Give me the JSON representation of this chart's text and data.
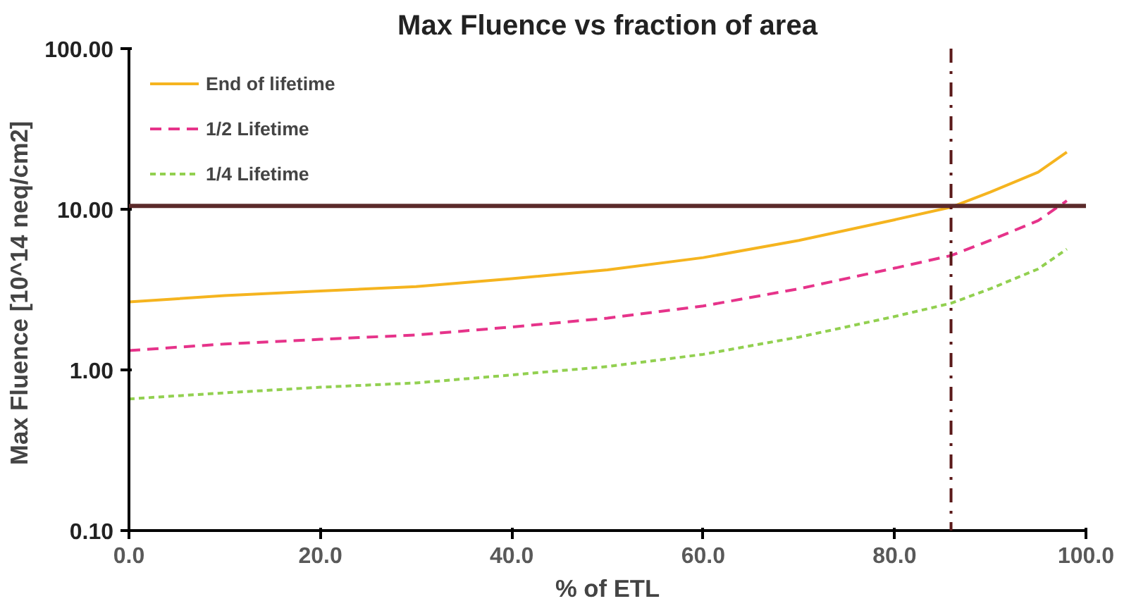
{
  "chart_data": {
    "type": "line",
    "title": "Max Fluence vs fraction of area",
    "xlabel": "% of ETL",
    "ylabel": "Max Fluence  [10^14 neq/cm2]",
    "x": [
      0,
      10,
      20,
      30,
      40,
      50,
      60,
      70,
      80,
      85.9,
      90,
      95,
      98
    ],
    "series": [
      {
        "name": "End of lifetime",
        "color": "#f5b41f",
        "line_style": "solid",
        "values": [
          2.65,
          2.9,
          3.1,
          3.3,
          3.7,
          4.2,
          5.0,
          6.4,
          8.6,
          10.3,
          12.8,
          17,
          22.7
        ]
      },
      {
        "name": "1/2 Lifetime",
        "color": "#e6338a",
        "line_style": "dashed",
        "values": [
          1.32,
          1.45,
          1.55,
          1.65,
          1.85,
          2.1,
          2.5,
          3.2,
          4.3,
          5.15,
          6.4,
          8.5,
          11.3
        ]
      },
      {
        "name": "1/4 Lifetime",
        "color": "#92d050",
        "line_style": "dotted",
        "values": [
          0.66,
          0.72,
          0.78,
          0.83,
          0.93,
          1.05,
          1.25,
          1.6,
          2.15,
          2.6,
          3.2,
          4.25,
          5.65
        ]
      }
    ],
    "log": "y",
    "xlim": [
      0,
      100
    ],
    "ylim": [
      0.1,
      100
    ],
    "xticks": [
      {
        "value": 0,
        "label": "0.0"
      },
      {
        "value": 20,
        "label": "20.0"
      },
      {
        "value": 40,
        "label": "40.0"
      },
      {
        "value": 60,
        "label": "60.0"
      },
      {
        "value": 80,
        "label": "80.0"
      },
      {
        "value": 100,
        "label": "100.0"
      }
    ],
    "yticks": [
      {
        "value": 0.1,
        "label": "0.10"
      },
      {
        "value": 1,
        "label": "1.00"
      },
      {
        "value": 10,
        "label": "10.00"
      },
      {
        "value": 100,
        "label": "100.00"
      }
    ],
    "ref_lines": [
      {
        "axis": "y",
        "value": 10.5,
        "color": "#5b2a2a",
        "line_style": "solid"
      },
      {
        "axis": "x",
        "value": 85.9,
        "color": "#5b1a1a",
        "line_style": "dashdot"
      }
    ],
    "grid": false,
    "legend": "top left"
  }
}
